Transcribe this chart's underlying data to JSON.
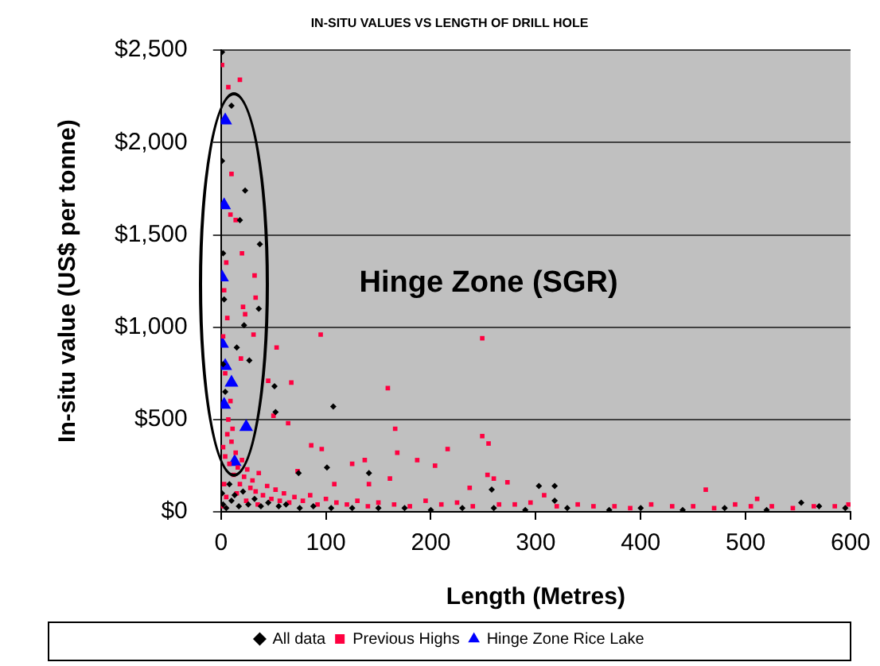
{
  "chart_data": {
    "type": "scatter",
    "title": "IN-SITU VALUES VS LENGTH OF DRILL HOLE",
    "xlabel": "Length (Metres)",
    "ylabel": "In-situ value (US$ per tonne)",
    "annotations": [
      "Hinge Zone (SGR)"
    ],
    "xlim": [
      0,
      600
    ],
    "xticks": [
      0,
      100,
      200,
      300,
      400,
      500,
      600
    ],
    "ylim": [
      0,
      2500
    ],
    "yticks": [
      {
        "value": 0,
        "label": "$0"
      },
      {
        "value": 500,
        "label": "$500"
      },
      {
        "value": 1000,
        "label": "$1,000"
      },
      {
        "value": 1500,
        "label": "$1,500"
      },
      {
        "value": 2000,
        "label": "$2,000"
      },
      {
        "value": 2500,
        "label": "$2,500"
      }
    ],
    "grid": "y",
    "legend": "bottom",
    "series": [
      {
        "name": "All data",
        "color": "#000000",
        "marker": "diamond",
        "x": [
          1,
          10,
          23,
          18,
          37,
          36,
          22,
          27,
          39,
          51,
          107,
          52,
          101,
          141,
          74,
          15,
          303,
          318,
          318,
          258,
          553,
          1,
          2,
          3,
          5,
          8,
          10,
          13,
          17,
          21,
          26,
          32,
          38,
          45,
          55,
          62,
          75,
          88,
          105,
          125,
          150,
          175,
          200,
          230,
          260,
          290,
          330,
          370,
          400,
          440,
          480,
          520,
          570,
          595,
          2,
          1,
          3,
          2,
          4
        ],
        "values": [
          2490,
          2200,
          1740,
          1580,
          1450,
          1100,
          1010,
          820,
          null,
          680,
          570,
          540,
          240,
          210,
          210,
          890,
          140,
          140,
          60,
          120,
          50,
          100,
          40,
          null,
          20,
          150,
          60,
          90,
          30,
          110,
          40,
          70,
          30,
          50,
          30,
          40,
          20,
          30,
          20,
          20,
          20,
          20,
          10,
          20,
          20,
          10,
          20,
          10,
          20,
          10,
          20,
          10,
          30,
          20,
          1400,
          1900,
          1150,
          800,
          650
        ]
      },
      {
        "name": "Previous Highs",
        "color": "#ff0040",
        "marker": "square",
        "x": [
          1,
          18,
          7,
          10,
          9,
          14,
          20,
          32,
          33,
          21,
          23,
          31,
          53,
          95,
          19,
          45,
          67,
          159,
          50,
          64,
          166,
          96,
          86,
          125,
          137,
          168,
          187,
          216,
          204,
          161,
          141,
          108,
          73,
          249,
          249,
          255,
          254,
          260,
          273,
          237,
          308,
          462,
          511,
          2,
          4,
          6,
          8,
          10,
          12,
          14,
          16,
          18,
          20,
          22,
          25,
          28,
          30,
          33,
          36,
          40,
          44,
          48,
          52,
          56,
          60,
          65,
          70,
          78,
          85,
          92,
          100,
          110,
          120,
          130,
          140,
          150,
          165,
          180,
          195,
          210,
          225,
          240,
          265,
          280,
          295,
          320,
          340,
          355,
          375,
          390,
          410,
          430,
          450,
          470,
          490,
          505,
          525,
          545,
          565,
          585,
          598,
          3,
          5,
          7,
          9,
          11,
          15,
          24,
          35,
          1,
          3,
          5,
          2,
          6,
          4
        ],
        "values": [
          2420,
          2340,
          2300,
          1830,
          1610,
          1580,
          1400,
          1280,
          1160,
          1110,
          1070,
          960,
          890,
          960,
          830,
          710,
          700,
          670,
          520,
          480,
          450,
          340,
          360,
          260,
          280,
          320,
          280,
          340,
          250,
          180,
          150,
          150,
          220,
          940,
          410,
          370,
          200,
          180,
          160,
          130,
          90,
          120,
          70,
          350,
          300,
          420,
          260,
          380,
          200,
          320,
          240,
          150,
          280,
          190,
          230,
          130,
          170,
          110,
          210,
          90,
          140,
          70,
          120,
          60,
          100,
          50,
          80,
          60,
          90,
          40,
          70,
          50,
          40,
          60,
          30,
          50,
          40,
          30,
          60,
          40,
          50,
          30,
          40,
          40,
          50,
          30,
          40,
          30,
          30,
          20,
          40,
          30,
          30,
          20,
          40,
          30,
          30,
          20,
          30,
          30,
          40,
          150,
          80,
          500,
          600,
          450,
          100,
          60,
          40,
          30,
          1200,
          1350,
          950,
          1050,
          750
        ]
      },
      {
        "name": "Hinge Zone Rice Lake",
        "color": "#0000ff",
        "marker": "triangle",
        "x": [
          4,
          3,
          1,
          1,
          4,
          10,
          3,
          24,
          13
        ],
        "values": [
          2120,
          1660,
          1270,
          910,
          790,
          700,
          580,
          460,
          270
        ]
      }
    ]
  }
}
